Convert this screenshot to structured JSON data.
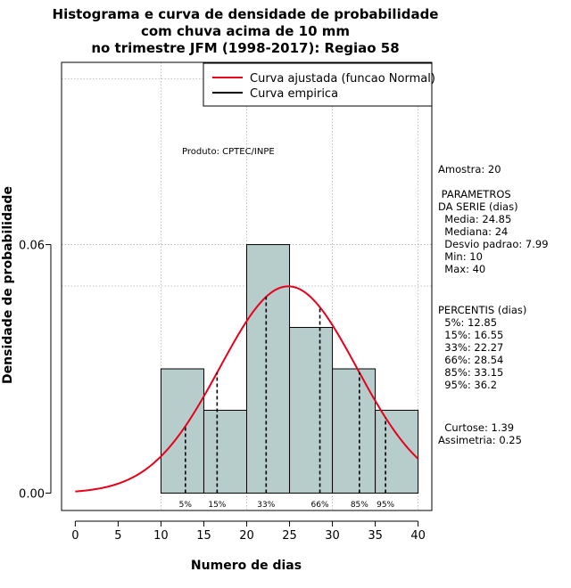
{
  "chart_data": {
    "type": "bar",
    "title_lines": [
      "Histograma e curva de densidade de probabilidade",
      "com chuva acima de 10 mm",
      "no trimestre JFM (1998-2017): Regiao 58"
    ],
    "xlabel": "Numero de dias",
    "ylabel": "Densidade de probabilidade",
    "xlim": [
      -1.6,
      41.6
    ],
    "ylim": [
      -0.0042,
      0.104
    ],
    "x_ticks": [
      0,
      5,
      10,
      15,
      20,
      25,
      30,
      35,
      40
    ],
    "x_tick_labels": [
      "0",
      "5",
      "10",
      "15",
      "20",
      "25",
      "30",
      "35",
      "40"
    ],
    "y_ticks": [
      0.0,
      0.06
    ],
    "y_tick_labels": [
      "0.00",
      "0.06"
    ],
    "h_grid": [
      0.06,
      0.05,
      0.1
    ],
    "v_grid": [
      10,
      20,
      30,
      40
    ],
    "bins": [
      {
        "x0": 10,
        "x1": 15,
        "density": 0.03
      },
      {
        "x0": 15,
        "x1": 20,
        "density": 0.02
      },
      {
        "x0": 20,
        "x1": 25,
        "density": 0.06
      },
      {
        "x0": 25,
        "x1": 30,
        "density": 0.04
      },
      {
        "x0": 30,
        "x1": 35,
        "density": 0.03
      },
      {
        "x0": 35,
        "x1": 40,
        "density": 0.02
      }
    ],
    "fitted_curve": {
      "mean": 24.85,
      "sd": 7.99,
      "x_range": [
        0,
        40
      ]
    },
    "percentiles": [
      {
        "label": "5%",
        "value": 12.85
      },
      {
        "label": "15%",
        "value": 16.55
      },
      {
        "label": "33%",
        "value": 22.27
      },
      {
        "label": "66%",
        "value": 28.54
      },
      {
        "label": "85%",
        "value": 33.15
      },
      {
        "label": "95%",
        "value": 36.2
      }
    ],
    "legend": [
      {
        "label": "Curva ajustada (funcao Normal)",
        "color": "#e8001c"
      },
      {
        "label": "Curva empirica",
        "color": "#000000"
      }
    ],
    "legend_position": "top-right",
    "annotation": "Produto: CPTEC/INPE",
    "colors": {
      "bar_fill": "#b7cdcc",
      "curve": "#e8001c",
      "grid": "#b0b0b0"
    }
  },
  "stats_panel": {
    "amostra": "Amostra: 20",
    "param_header_1": " PARAMETROS",
    "param_header_2": "DA SERIE (dias)",
    "params": [
      "  Media: 24.85",
      "  Mediana: 24",
      "  Desvio padrao: 7.99",
      "  Min: 10",
      "  Max: 40"
    ],
    "percentis_header": "PERCENTIS (dias)",
    "percentis": [
      "  5%: 12.85",
      "  15%: 16.55",
      "  33%: 22.27",
      "  66%: 28.54",
      "  85%: 33.15",
      "  95%: 36.2"
    ],
    "curtose": "  Curtose: 1.39",
    "assimetria": "Assimetria: 0.25"
  }
}
